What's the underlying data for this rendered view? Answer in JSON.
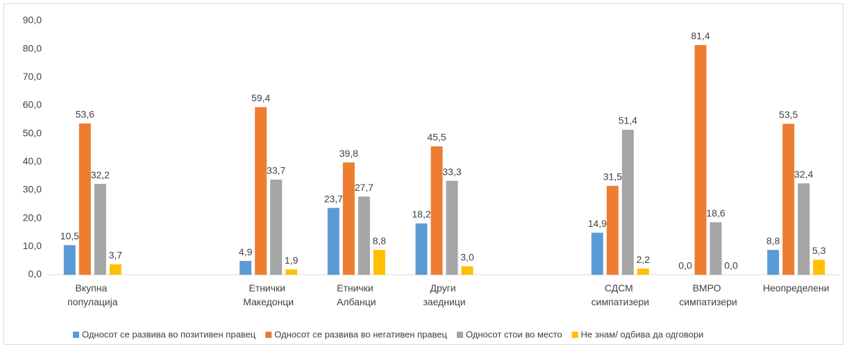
{
  "chart_data": {
    "type": "bar",
    "categories": [
      "Вкупна популација",
      null,
      "Етнички Македонци",
      "Етнички Албанци",
      "Други заедници",
      null,
      "СДСМ симпатизери",
      "ВМРО симпатизери",
      "Неопределени"
    ],
    "series": [
      {
        "name": "Односот се развива во позитивен правец",
        "color": "#5b9bd5",
        "values": [
          10.5,
          null,
          4.9,
          23.7,
          18.2,
          null,
          14.9,
          0.0,
          8.8
        ],
        "value_labels": [
          "10,5",
          null,
          "4,9",
          "23,7",
          "18,2",
          null,
          "14,9",
          "0,0",
          "8,8"
        ]
      },
      {
        "name": "Односот се развива во негативен правец",
        "color": "#ed7d31",
        "values": [
          53.6,
          null,
          59.4,
          39.8,
          45.5,
          null,
          31.5,
          81.4,
          53.5
        ],
        "value_labels": [
          "53,6",
          null,
          "59,4",
          "39,8",
          "45,5",
          null,
          "31,5",
          "81,4",
          "53,5"
        ]
      },
      {
        "name": "Односот стои во место",
        "color": "#a5a5a5",
        "values": [
          32.2,
          null,
          33.7,
          27.7,
          33.3,
          null,
          51.4,
          18.6,
          32.4
        ],
        "value_labels": [
          "32,2",
          null,
          "33,7",
          "27,7",
          "33,3",
          null,
          "51,4",
          "18,6",
          "32,4"
        ]
      },
      {
        "name": "Не знам/ одбива да одговори",
        "color": "#ffc000",
        "values": [
          3.7,
          null,
          1.9,
          8.8,
          3.0,
          null,
          2.2,
          0.0,
          5.3
        ],
        "value_labels": [
          "3,7",
          null,
          "1,9",
          "8,8",
          "3,0",
          null,
          "2,2",
          "0,0",
          "5,3"
        ]
      }
    ],
    "ylim": [
      0,
      90
    ],
    "yticks": [
      {
        "value": 0,
        "label": "0,0"
      },
      {
        "value": 10,
        "label": "10,0"
      },
      {
        "value": 20,
        "label": "20,0"
      },
      {
        "value": 30,
        "label": "30,0"
      },
      {
        "value": 40,
        "label": "40,0"
      },
      {
        "value": 50,
        "label": "50,0"
      },
      {
        "value": 60,
        "label": "60,0"
      },
      {
        "value": 70,
        "label": "70,0"
      },
      {
        "value": 80,
        "label": "80,0"
      },
      {
        "value": 90,
        "label": "90,0"
      }
    ],
    "grid": false,
    "legend": "bottom"
  }
}
